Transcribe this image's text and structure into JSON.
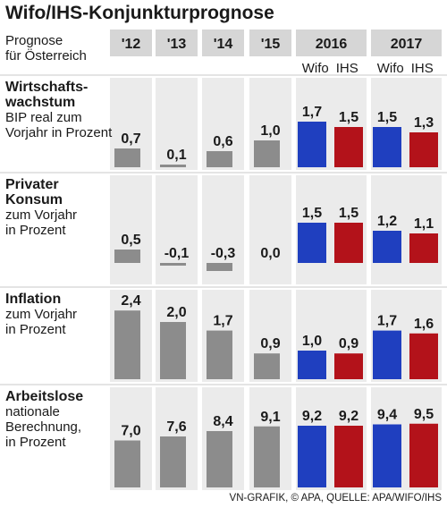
{
  "title": "Wifo/IHS-Konjunkturprognose",
  "footer": "VN-GRAFIK, © APA, QUELLE: APA/WIFO/IHS",
  "colors": {
    "wifo": "#1f3fbf",
    "ihs": "#b3121a",
    "history": "#8c8c8c",
    "band": "#ebebeb",
    "rule": "#c9c9c9"
  },
  "chart_data": {
    "type": "bar",
    "prognose_label_lines": [
      "Prognose",
      "für Österreich"
    ],
    "columns": [
      "'12",
      "'13",
      "'14",
      "'15",
      "2016",
      "2017"
    ],
    "sub_labels": {
      "2016": [
        "Wifo",
        "IHS"
      ],
      "2017": [
        "Wifo",
        "IHS"
      ]
    },
    "series": [
      {
        "name": "Wifo",
        "color": "#1f3fbf"
      },
      {
        "name": "IHS",
        "color": "#b3121a"
      }
    ],
    "panels": [
      {
        "title_lines": [
          "Wirtschafts-",
          "wachstum"
        ],
        "subtitle_lines": [
          "BIP real zum",
          "Vorjahr in Prozent"
        ],
        "history": [
          0.7,
          0.1,
          0.6,
          1.0
        ],
        "history_labels": [
          "0,7",
          "0,1",
          "0,6",
          "1,0"
        ],
        "forecast": {
          "2016": [
            1.7,
            1.5
          ],
          "2017": [
            1.5,
            1.3
          ]
        },
        "forecast_labels": {
          "2016": [
            "1,7",
            "1,5"
          ],
          "2017": [
            "1,5",
            "1,3"
          ]
        }
      },
      {
        "title_lines": [
          "Privater",
          "Konsum"
        ],
        "subtitle_lines": [
          "zum Vorjahr",
          "in Prozent"
        ],
        "history": [
          0.5,
          -0.1,
          -0.3,
          0.0
        ],
        "history_labels": [
          "0,5",
          "-0,1",
          "-0,3",
          "0,0"
        ],
        "forecast": {
          "2016": [
            1.5,
            1.5
          ],
          "2017": [
            1.2,
            1.1
          ]
        },
        "forecast_labels": {
          "2016": [
            "1,5",
            "1,5"
          ],
          "2017": [
            "1,2",
            "1,1"
          ]
        }
      },
      {
        "title_lines": [
          "Inflation"
        ],
        "subtitle_lines": [
          "zum Vorjahr",
          "in Prozent"
        ],
        "history": [
          2.4,
          2.0,
          1.7,
          0.9
        ],
        "history_labels": [
          "2,4",
          "2,0",
          "1,7",
          "0,9"
        ],
        "forecast": {
          "2016": [
            1.0,
            0.9
          ],
          "2017": [
            1.7,
            1.6
          ]
        },
        "forecast_labels": {
          "2016": [
            "1,0",
            "0,9"
          ],
          "2017": [
            "1,7",
            "1,6"
          ]
        }
      },
      {
        "title_lines": [
          "Arbeitslose"
        ],
        "subtitle_lines": [
          "nationale",
          "Berechnung,",
          "in Prozent"
        ],
        "history": [
          7.0,
          7.6,
          8.4,
          9.1
        ],
        "history_labels": [
          "7,0",
          "7,6",
          "8,4",
          "9,1"
        ],
        "forecast": {
          "2016": [
            9.2,
            9.2
          ],
          "2017": [
            9.4,
            9.5
          ]
        },
        "forecast_labels": {
          "2016": [
            "9,2",
            "9,2"
          ],
          "2017": [
            "9,4",
            "9,5"
          ]
        }
      }
    ]
  }
}
